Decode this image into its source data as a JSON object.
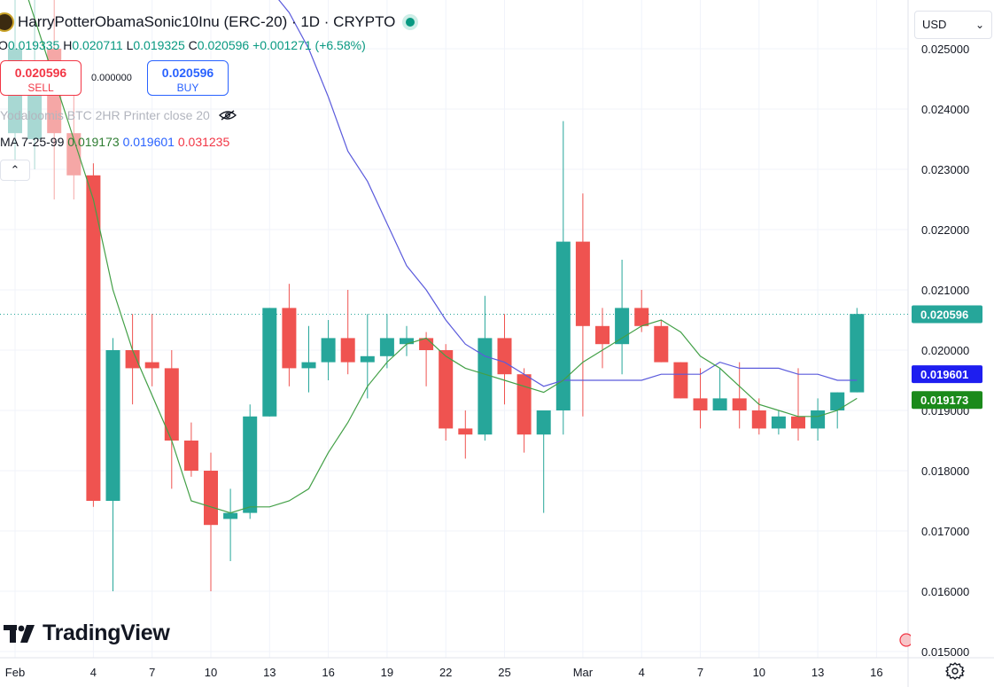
{
  "header": {
    "title": "HarryPotterObamaSonic10Inu (ERC-20) · 1D · CRYPTO",
    "ohlc": {
      "o_label": "O",
      "o_value": "0.019335",
      "h_label": "H",
      "h_value": "0.020711",
      "l_label": "L",
      "l_value": "0.019325",
      "c_label": "C",
      "c_value": "0.020596",
      "change": "+0.001271 (+6.58%)"
    },
    "sell": {
      "price": "0.020596",
      "label": "SELL"
    },
    "buy": {
      "price": "0.020596",
      "label": "BUY"
    },
    "spread": "0.000000",
    "indicator_name": "Yodaloomis BTC 2HR Printer close 20",
    "ma": {
      "label": "MA 7-25-99",
      "v7": "0.019173",
      "v25": "0.019601",
      "v99": "0.031235"
    },
    "collapse_icon": "chevron-up-icon"
  },
  "toolbar": {
    "currency": "USD"
  },
  "branding": {
    "name": "TradingView"
  },
  "colors": {
    "up": "#26a69a",
    "down": "#ef5350",
    "ma7": "#43a047",
    "ma25": "#5b5bdc",
    "last": "#26a69a"
  },
  "chart_data": {
    "type": "candlestick",
    "title": "HarryPotterObamaSonic10Inu (ERC-20) · 1D · CRYPTO",
    "currency": "USD",
    "y_ticks": [
      "0.025000",
      "0.024000",
      "0.023000",
      "0.022000",
      "0.021000",
      "0.020000",
      "0.019000",
      "0.018000",
      "0.017000",
      "0.016000",
      "0.015000"
    ],
    "x_ticks": [
      {
        "label": "Feb",
        "day": 0
      },
      {
        "label": "4",
        "day": 4
      },
      {
        "label": "7",
        "day": 7
      },
      {
        "label": "10",
        "day": 10
      },
      {
        "label": "13",
        "day": 13
      },
      {
        "label": "16",
        "day": 16
      },
      {
        "label": "19",
        "day": 19
      },
      {
        "label": "22",
        "day": 22
      },
      {
        "label": "25",
        "day": 25
      },
      {
        "label": "Mar",
        "day": 29
      },
      {
        "label": "4",
        "day": 32
      },
      {
        "label": "7",
        "day": 35
      },
      {
        "label": "10",
        "day": 38
      },
      {
        "label": "13",
        "day": 41
      },
      {
        "label": "16",
        "day": 44
      }
    ],
    "candles": [
      {
        "day": 0,
        "o": 0.0236,
        "h": 0.026,
        "l": 0.0228,
        "c": 0.025
      },
      {
        "day": 1,
        "o": 0.0235,
        "h": 0.026,
        "l": 0.023,
        "c": 0.0248
      },
      {
        "day": 2,
        "o": 0.025,
        "h": 0.026,
        "l": 0.0225,
        "c": 0.0236
      },
      {
        "day": 3,
        "o": 0.0236,
        "h": 0.0245,
        "l": 0.0225,
        "c": 0.0229
      },
      {
        "day": 4,
        "o": 0.0229,
        "h": 0.0231,
        "l": 0.0174,
        "c": 0.0175
      },
      {
        "day": 5,
        "o": 0.0175,
        "h": 0.0202,
        "l": 0.016,
        "c": 0.02
      },
      {
        "day": 6,
        "o": 0.02,
        "h": 0.0206,
        "l": 0.0191,
        "c": 0.0197
      },
      {
        "day": 7,
        "o": 0.0198,
        "h": 0.0206,
        "l": 0.0194,
        "c": 0.0197
      },
      {
        "day": 8,
        "o": 0.0197,
        "h": 0.02,
        "l": 0.0177,
        "c": 0.0185
      },
      {
        "day": 9,
        "o": 0.0185,
        "h": 0.0188,
        "l": 0.0179,
        "c": 0.018
      },
      {
        "day": 10,
        "o": 0.018,
        "h": 0.0183,
        "l": 0.016,
        "c": 0.0171
      },
      {
        "day": 11,
        "o": 0.0172,
        "h": 0.0177,
        "l": 0.0165,
        "c": 0.0173
      },
      {
        "day": 12,
        "o": 0.0173,
        "h": 0.0191,
        "l": 0.0172,
        "c": 0.0189
      },
      {
        "day": 13,
        "o": 0.0189,
        "h": 0.0207,
        "l": 0.0189,
        "c": 0.0207
      },
      {
        "day": 14,
        "o": 0.0207,
        "h": 0.0211,
        "l": 0.0194,
        "c": 0.0197
      },
      {
        "day": 15,
        "o": 0.0197,
        "h": 0.0204,
        "l": 0.0193,
        "c": 0.0198
      },
      {
        "day": 16,
        "o": 0.0198,
        "h": 0.0205,
        "l": 0.0195,
        "c": 0.0202
      },
      {
        "day": 17,
        "o": 0.0202,
        "h": 0.021,
        "l": 0.0196,
        "c": 0.0198
      },
      {
        "day": 18,
        "o": 0.0198,
        "h": 0.0206,
        "l": 0.0192,
        "c": 0.0199
      },
      {
        "day": 19,
        "o": 0.0199,
        "h": 0.0206,
        "l": 0.0197,
        "c": 0.0202
      },
      {
        "day": 20,
        "o": 0.0201,
        "h": 0.0204,
        "l": 0.0199,
        "c": 0.0202
      },
      {
        "day": 21,
        "o": 0.0202,
        "h": 0.0203,
        "l": 0.0194,
        "c": 0.02
      },
      {
        "day": 22,
        "o": 0.02,
        "h": 0.0201,
        "l": 0.0185,
        "c": 0.0187
      },
      {
        "day": 23,
        "o": 0.0187,
        "h": 0.019,
        "l": 0.0182,
        "c": 0.0186
      },
      {
        "day": 24,
        "o": 0.0186,
        "h": 0.0209,
        "l": 0.0185,
        "c": 0.0202
      },
      {
        "day": 25,
        "o": 0.0202,
        "h": 0.0206,
        "l": 0.0191,
        "c": 0.0196
      },
      {
        "day": 26,
        "o": 0.0196,
        "h": 0.0197,
        "l": 0.0183,
        "c": 0.0186
      },
      {
        "day": 27,
        "o": 0.0186,
        "h": 0.019,
        "l": 0.0173,
        "c": 0.019
      },
      {
        "day": 28,
        "o": 0.019,
        "h": 0.0238,
        "l": 0.0186,
        "c": 0.0218
      },
      {
        "day": 29,
        "o": 0.0218,
        "h": 0.0226,
        "l": 0.0189,
        "c": 0.0204
      },
      {
        "day": 30,
        "o": 0.0204,
        "h": 0.0207,
        "l": 0.0197,
        "c": 0.0201
      },
      {
        "day": 31,
        "o": 0.0201,
        "h": 0.0215,
        "l": 0.0196,
        "c": 0.0207
      },
      {
        "day": 32,
        "o": 0.0207,
        "h": 0.021,
        "l": 0.0203,
        "c": 0.0204
      },
      {
        "day": 33,
        "o": 0.0204,
        "h": 0.0205,
        "l": 0.0198,
        "c": 0.0198
      },
      {
        "day": 34,
        "o": 0.0198,
        "h": 0.0198,
        "l": 0.0192,
        "c": 0.0192
      },
      {
        "day": 35,
        "o": 0.0192,
        "h": 0.0197,
        "l": 0.0187,
        "c": 0.019
      },
      {
        "day": 36,
        "o": 0.019,
        "h": 0.0197,
        "l": 0.019,
        "c": 0.0192
      },
      {
        "day": 37,
        "o": 0.0192,
        "h": 0.0198,
        "l": 0.0187,
        "c": 0.019
      },
      {
        "day": 38,
        "o": 0.019,
        "h": 0.0192,
        "l": 0.0186,
        "c": 0.0187
      },
      {
        "day": 39,
        "o": 0.0187,
        "h": 0.019,
        "l": 0.0186,
        "c": 0.0189
      },
      {
        "day": 40,
        "o": 0.0189,
        "h": 0.0197,
        "l": 0.0185,
        "c": 0.0187
      },
      {
        "day": 41,
        "o": 0.0187,
        "h": 0.0192,
        "l": 0.0185,
        "c": 0.019
      },
      {
        "day": 42,
        "o": 0.019,
        "h": 0.0193,
        "l": 0.0187,
        "c": 0.0193
      },
      {
        "day": 43,
        "o": 0.0193,
        "h": 0.0207,
        "l": 0.0193,
        "c": 0.0206
      }
    ],
    "ma7": [
      [
        0,
        0.0265
      ],
      [
        3,
        0.0235
      ],
      [
        4,
        0.0225
      ],
      [
        5,
        0.021
      ],
      [
        6,
        0.02
      ],
      [
        8,
        0.0185
      ],
      [
        9,
        0.0175
      ],
      [
        10,
        0.0174
      ],
      [
        11,
        0.0173
      ],
      [
        12,
        0.0174
      ],
      [
        13,
        0.0174
      ],
      [
        14,
        0.0175
      ],
      [
        15,
        0.0177
      ],
      [
        16,
        0.0183
      ],
      [
        17,
        0.0188
      ],
      [
        18,
        0.0194
      ],
      [
        19,
        0.0198
      ],
      [
        20,
        0.0201
      ],
      [
        21,
        0.0202
      ],
      [
        22,
        0.0199
      ],
      [
        23,
        0.0197
      ],
      [
        24,
        0.0196
      ],
      [
        25,
        0.0195
      ],
      [
        26,
        0.0194
      ],
      [
        27,
        0.0193
      ],
      [
        28,
        0.0195
      ],
      [
        29,
        0.0198
      ],
      [
        30,
        0.02
      ],
      [
        31,
        0.0202
      ],
      [
        32,
        0.0204
      ],
      [
        33,
        0.0205
      ],
      [
        34,
        0.0203
      ],
      [
        35,
        0.0199
      ],
      [
        36,
        0.0197
      ],
      [
        37,
        0.0194
      ],
      [
        38,
        0.0191
      ],
      [
        39,
        0.019
      ],
      [
        40,
        0.0189
      ],
      [
        41,
        0.0189
      ],
      [
        42,
        0.019
      ],
      [
        43,
        0.0192
      ]
    ],
    "ma25": [
      [
        13,
        0.026
      ],
      [
        14,
        0.0256
      ],
      [
        15,
        0.025
      ],
      [
        16,
        0.0242
      ],
      [
        17,
        0.0233
      ],
      [
        18,
        0.0228
      ],
      [
        19,
        0.0221
      ],
      [
        20,
        0.0214
      ],
      [
        21,
        0.021
      ],
      [
        22,
        0.0205
      ],
      [
        23,
        0.0201
      ],
      [
        24,
        0.0199
      ],
      [
        25,
        0.0198
      ],
      [
        26,
        0.0196
      ],
      [
        27,
        0.0194
      ],
      [
        28,
        0.0195
      ],
      [
        29,
        0.0195
      ],
      [
        30,
        0.0195
      ],
      [
        31,
        0.0195
      ],
      [
        32,
        0.0195
      ],
      [
        33,
        0.0196
      ],
      [
        34,
        0.0196
      ],
      [
        35,
        0.0196
      ],
      [
        36,
        0.0198
      ],
      [
        37,
        0.0197
      ],
      [
        38,
        0.0197
      ],
      [
        39,
        0.0197
      ],
      [
        40,
        0.0196
      ],
      [
        41,
        0.0196
      ],
      [
        42,
        0.0195
      ],
      [
        43,
        0.0195
      ]
    ],
    "last_price": {
      "value": 0.020596,
      "label": "0.020596"
    },
    "ma25_tag": {
      "value": 0.019601,
      "label": "0.019601"
    },
    "ma7_tag": {
      "value": 0.019173,
      "label": "0.019173"
    }
  }
}
